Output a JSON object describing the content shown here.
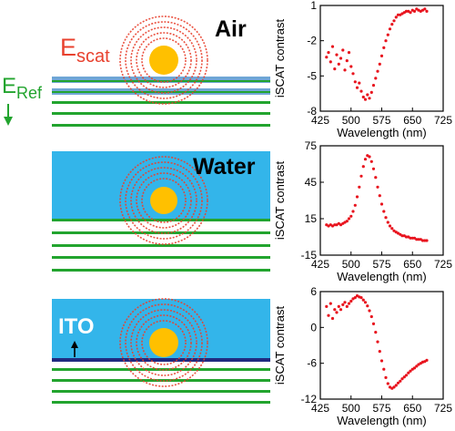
{
  "schematic": {
    "labels": {
      "e_scat": "E",
      "e_scat_sub": "scat",
      "e_ref": "E",
      "e_ref_sub": "Ref",
      "air": "Air",
      "water": "Water",
      "ito": "ITO"
    },
    "colors": {
      "water": "#33b5ea",
      "particle": "#ffc000",
      "rings": "#e8412e",
      "stripe_green": "#22a42e",
      "stripe_blue": "#6fa6d6",
      "ito_layer": "#1f2a80",
      "e_scat_text": "#e8412e",
      "e_ref_text": "#22a42e"
    }
  },
  "chart_data": [
    {
      "type": "scatter",
      "xlabel": "Wavelength (nm)",
      "ylabel": "iSCAT contrast",
      "xlim": [
        425,
        725
      ],
      "ylim": [
        -8,
        1
      ],
      "xticks": [
        425,
        500,
        575,
        650,
        725
      ],
      "yticks": [
        1,
        -2,
        -5,
        -8
      ],
      "color": "#e8141e",
      "x": [
        440,
        445,
        450,
        455,
        460,
        465,
        470,
        475,
        480,
        485,
        490,
        495,
        500,
        505,
        510,
        515,
        520,
        525,
        530,
        535,
        540,
        545,
        550,
        555,
        560,
        565,
        570,
        575,
        580,
        585,
        590,
        595,
        600,
        605,
        610,
        615,
        620,
        625,
        630,
        635,
        640,
        645,
        650,
        655,
        660,
        665,
        670,
        675,
        680,
        685
      ],
      "y": [
        -3.4,
        -3.0,
        -3.8,
        -2.5,
        -4.4,
        -3.2,
        -4.0,
        -3.5,
        -2.8,
        -4.5,
        -3.7,
        -3.0,
        -4.2,
        -4.8,
        -5.5,
        -6.0,
        -5.6,
        -6.3,
        -6.8,
        -7.0,
        -6.6,
        -6.9,
        -6.4,
        -5.8,
        -5.2,
        -4.6,
        -4.0,
        -3.3,
        -2.6,
        -2.0,
        -1.5,
        -1.0,
        -0.6,
        -0.3,
        0.0,
        0.2,
        0.2,
        0.3,
        0.4,
        0.5,
        0.5,
        0.4,
        0.6,
        0.5,
        0.7,
        0.6,
        0.5,
        0.6,
        0.7,
        0.5
      ]
    },
    {
      "type": "scatter",
      "xlabel": "Wavelength (nm)",
      "ylabel": "iSCAT contrast",
      "xlim": [
        425,
        725
      ],
      "ylim": [
        -15,
        75
      ],
      "xticks": [
        425,
        500,
        575,
        650,
        725
      ],
      "yticks": [
        75,
        45,
        15,
        -15
      ],
      "color": "#e8141e",
      "x": [
        440,
        445,
        450,
        455,
        460,
        465,
        470,
        475,
        480,
        485,
        490,
        495,
        500,
        505,
        510,
        515,
        520,
        525,
        530,
        535,
        540,
        545,
        550,
        555,
        560,
        565,
        570,
        575,
        580,
        585,
        590,
        595,
        600,
        605,
        610,
        615,
        620,
        625,
        630,
        635,
        640,
        645,
        650,
        655,
        660,
        665,
        670,
        675,
        680,
        685
      ],
      "y": [
        10,
        9,
        10,
        9,
        10,
        10,
        11,
        10,
        11,
        12,
        13,
        15,
        17,
        21,
        26,
        33,
        41,
        50,
        58,
        64,
        67,
        66,
        62,
        56,
        49,
        41,
        34,
        27,
        21,
        16,
        12,
        9,
        7,
        5,
        4,
        3,
        2,
        1,
        1,
        0,
        0,
        -1,
        -1,
        -1,
        -2,
        -2,
        -2,
        -3,
        -3,
        -3
      ]
    },
    {
      "type": "scatter",
      "xlabel": "Wavelength (nm)",
      "ylabel": "iSCAT contrast",
      "xlim": [
        425,
        725
      ],
      "ylim": [
        -12,
        6
      ],
      "xticks": [
        425,
        500,
        575,
        650,
        725
      ],
      "yticks": [
        6,
        0,
        -6,
        -12
      ],
      "color": "#e8141e",
      "x": [
        440,
        445,
        450,
        455,
        460,
        465,
        470,
        475,
        480,
        485,
        490,
        495,
        500,
        505,
        510,
        515,
        520,
        525,
        530,
        535,
        540,
        545,
        550,
        555,
        560,
        565,
        570,
        575,
        580,
        585,
        590,
        595,
        600,
        605,
        610,
        615,
        620,
        625,
        630,
        635,
        640,
        645,
        650,
        655,
        660,
        665,
        670,
        675,
        680,
        685
      ],
      "y": [
        3.5,
        2.0,
        4.0,
        1.5,
        3.0,
        2.5,
        3.5,
        3.0,
        3.8,
        4.2,
        3.5,
        4.0,
        4.4,
        4.8,
        5.0,
        5.3,
        5.1,
        5.0,
        4.6,
        4.2,
        3.6,
        2.8,
        1.8,
        0.6,
        -0.8,
        -2.4,
        -4.0,
        -5.6,
        -7.0,
        -8.4,
        -9.4,
        -10.0,
        -10.2,
        -10.0,
        -9.7,
        -9.3,
        -9.0,
        -8.6,
        -8.3,
        -8.0,
        -7.6,
        -7.3,
        -7.0,
        -6.8,
        -6.5,
        -6.2,
        -6.0,
        -5.8,
        -5.7,
        -5.5
      ]
    }
  ]
}
